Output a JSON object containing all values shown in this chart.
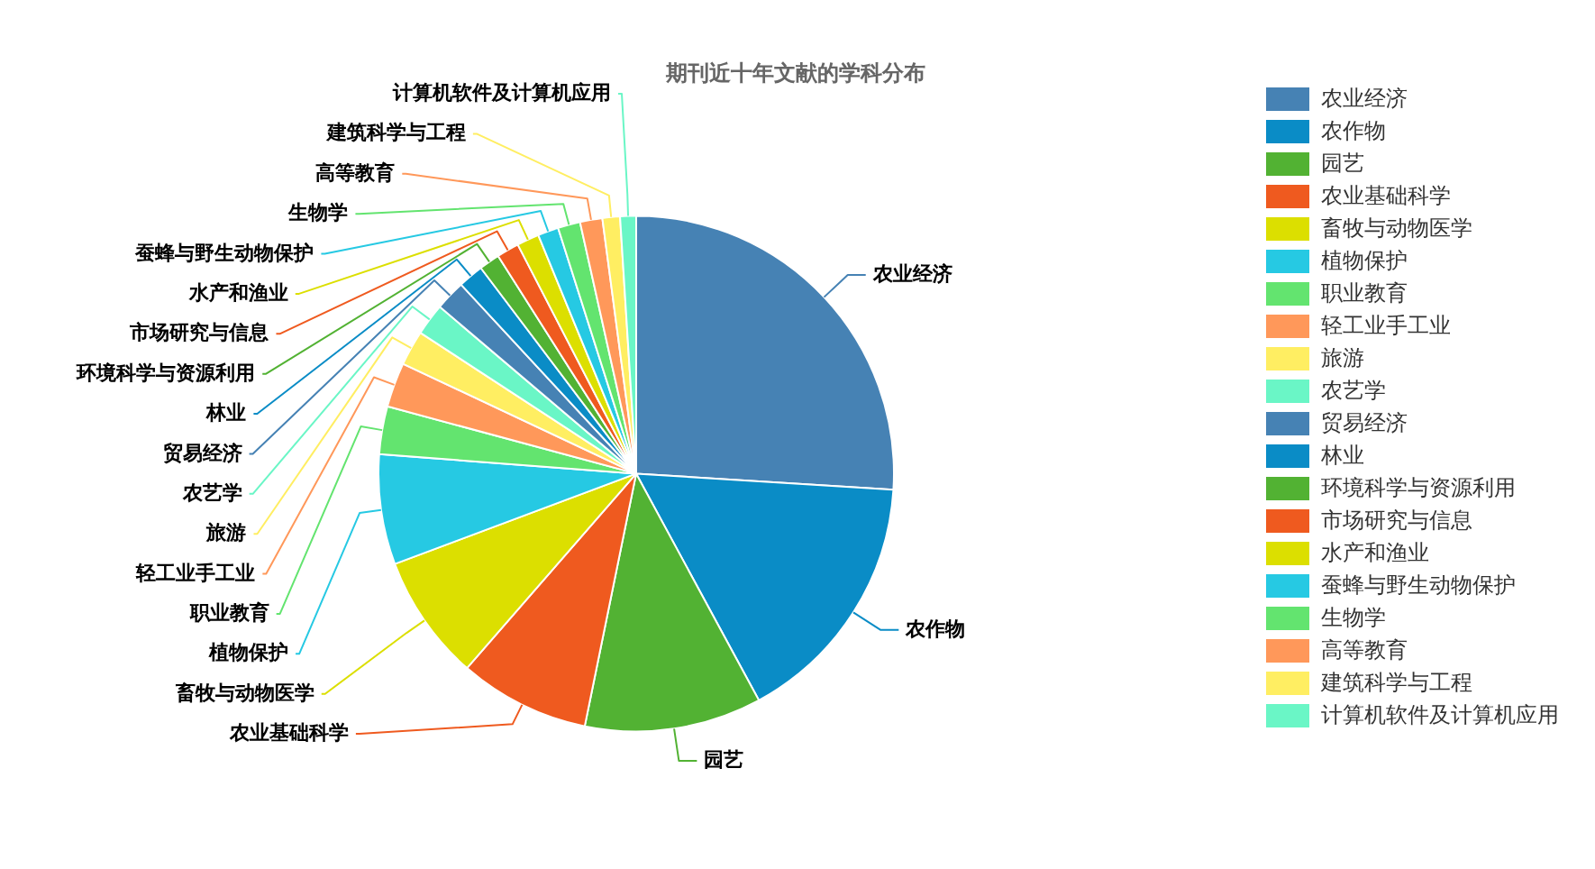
{
  "chart_data": {
    "type": "pie",
    "title": "期刊近十年文献的学科分布",
    "categories": [
      "农业经济",
      "农作物",
      "园艺",
      "农业基础科学",
      "畜牧与动物医学",
      "植物保护",
      "职业教育",
      "轻工业手工业",
      "旅游",
      "农艺学",
      "贸易经济",
      "林业",
      "环境科学与资源利用",
      "市场研究与信息",
      "水产和渔业",
      "蚕蜂与野生动物保护",
      "生物学",
      "高等教育",
      "建筑科学与工程",
      "计算机软件及计算机应用"
    ],
    "values": [
      26.0,
      16.1,
      11.1,
      8.2,
      7.9,
      6.9,
      3.0,
      2.8,
      2.2,
      2.0,
      1.9,
      1.6,
      1.3,
      1.4,
      1.4,
      1.3,
      1.4,
      1.4,
      1.1,
      1.0
    ],
    "colors": [
      "#4682b4",
      "#0a8cc6",
      "#52b233",
      "#ef5a1f",
      "#dcdf00",
      "#26c9e3",
      "#63e46f",
      "#ff985a",
      "#ffee62",
      "#6af6c6",
      "#4682b4",
      "#0a8cc6",
      "#52b233",
      "#ef5a1f",
      "#dcdf00",
      "#26c9e3",
      "#63e46f",
      "#ff985a",
      "#ffee62",
      "#6af6c6"
    ],
    "legend": "right"
  }
}
